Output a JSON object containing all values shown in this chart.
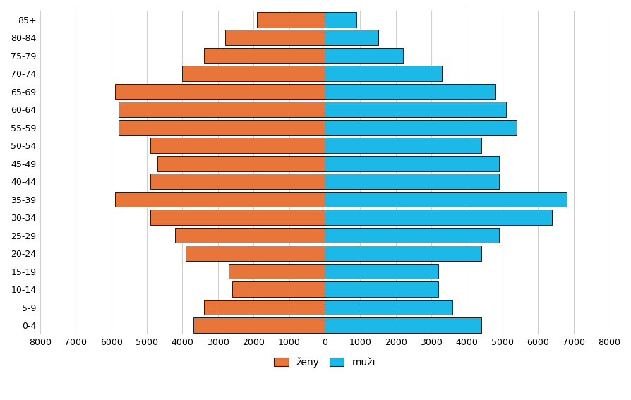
{
  "age_groups": [
    "0-4",
    "5-9",
    "10-14",
    "15-19",
    "20-24",
    "25-29",
    "30-34",
    "35-39",
    "40-44",
    "45-49",
    "50-54",
    "55-59",
    "60-64",
    "65-69",
    "70-74",
    "75-79",
    "80-84",
    "85+"
  ],
  "zeny": [
    3700,
    3400,
    2600,
    2700,
    3900,
    4200,
    4900,
    5900,
    4900,
    4700,
    4900,
    5800,
    5800,
    5900,
    4000,
    3400,
    2800,
    1900
  ],
  "muzi": [
    4400,
    3600,
    3200,
    3200,
    4400,
    4900,
    6400,
    6800,
    4900,
    4900,
    4400,
    5400,
    5100,
    4800,
    3300,
    2200,
    1500,
    900
  ],
  "zeny_color": "#E8763A",
  "muzi_color": "#1BB8E8",
  "bar_edgecolor": "#1a1a1a",
  "xlim": 8000,
  "legend_zeny": "ženy",
  "legend_muzi": "muži",
  "background_color": "#ffffff",
  "grid_color": "#d0d0d0"
}
